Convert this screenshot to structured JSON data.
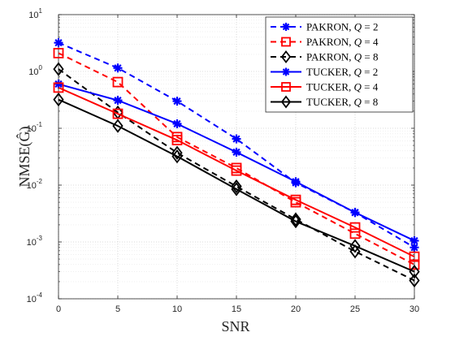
{
  "chart_data": {
    "type": "line",
    "xlabel": "SNR",
    "ylabel": "NMSE(Ĝ)",
    "yscale": "log",
    "xlim": [
      0,
      30
    ],
    "ylim": [
      0.0001,
      10
    ],
    "grid": true,
    "legend_position": "top-right",
    "x": [
      0,
      5,
      10,
      15,
      20,
      25,
      30
    ],
    "x_ticks": [
      "0",
      "5",
      "10",
      "15",
      "20",
      "25",
      "30"
    ],
    "y_ticks": [
      {
        "base": "10",
        "exp": "-4"
      },
      {
        "base": "10",
        "exp": "-3"
      },
      {
        "base": "10",
        "exp": "-2"
      },
      {
        "base": "10",
        "exp": "-1"
      },
      {
        "base": "10",
        "exp": "0"
      },
      {
        "base": "10",
        "exp": "1"
      }
    ],
    "series": [
      {
        "name": "PAKRON, Q = 2",
        "label_main": "PAKRON, ",
        "label_var": "Q",
        "label_val": " = 2",
        "color": "#0000ff",
        "dash": "dashed",
        "marker": "star",
        "values": [
          3.2,
          1.15,
          0.3,
          0.065,
          0.011,
          0.0033,
          0.0008
        ]
      },
      {
        "name": "PAKRON, Q = 4",
        "label_main": "PAKRON, ",
        "label_var": "Q",
        "label_val": " = 4",
        "color": "#ff0000",
        "dash": "dashed",
        "marker": "square",
        "values": [
          2.1,
          0.65,
          0.07,
          0.02,
          0.005,
          0.0014,
          0.0004
        ]
      },
      {
        "name": "PAKRON, Q = 8",
        "label_main": "PAKRON, ",
        "label_var": "Q",
        "label_val": " = 8",
        "color": "#000000",
        "dash": "dashed",
        "marker": "diamond",
        "values": [
          1.1,
          0.19,
          0.037,
          0.0095,
          0.0025,
          0.00068,
          0.00021
        ]
      },
      {
        "name": "TUCKER, Q = 2",
        "label_main": "TUCKER, ",
        "label_var": "Q",
        "label_val": " = 2",
        "color": "#0000ff",
        "dash": "solid",
        "marker": "star",
        "values": [
          0.6,
          0.31,
          0.12,
          0.038,
          0.0115,
          0.0033,
          0.00105
        ]
      },
      {
        "name": "TUCKER, Q = 4",
        "label_main": "TUCKER, ",
        "label_var": "Q",
        "label_val": " = 4",
        "color": "#ff0000",
        "dash": "solid",
        "marker": "square",
        "values": [
          0.52,
          0.18,
          0.062,
          0.018,
          0.0055,
          0.0018,
          0.00055
        ]
      },
      {
        "name": "TUCKER, Q = 8",
        "label_main": "TUCKER, ",
        "label_var": "Q",
        "label_val": " = 8",
        "color": "#000000",
        "dash": "solid",
        "marker": "diamond",
        "values": [
          0.32,
          0.11,
          0.032,
          0.0085,
          0.0023,
          0.00085,
          0.0003
        ]
      }
    ]
  }
}
